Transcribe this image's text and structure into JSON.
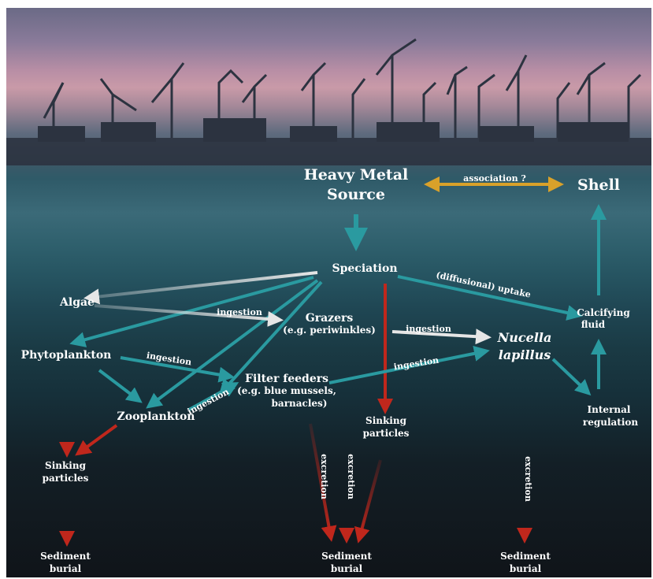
{
  "nodes": {
    "heavy_metal_source": [
      "Heavy Metal",
      "Source"
    ],
    "shell": "Shell",
    "speciation": "Speciation",
    "algae": "Algae",
    "grazers": [
      "Grazers",
      "(e.g. periwinkles)"
    ],
    "nucella": [
      "Nucella",
      "lapillus"
    ],
    "calcifying_fluid": [
      "Calcifying",
      "fluid"
    ],
    "phytoplankton": "Phytoplankton",
    "filter_feeders": [
      "Filter feeders",
      "(e.g. blue mussels,",
      "barnacles)"
    ],
    "zooplankton": "Zooplankton",
    "internal_regulation": [
      "Internal",
      "regulation"
    ],
    "sinking_particles_left": [
      "Sinking",
      "particles"
    ],
    "sinking_particles_mid": [
      "Sinking",
      "particles"
    ],
    "sediment_burial_left": [
      "Sediment",
      "burial"
    ],
    "sediment_burial_mid": [
      "Sediment",
      "burial"
    ],
    "sediment_burial_right": [
      "Sediment",
      "burial"
    ]
  },
  "edge_labels": {
    "association": "association ?",
    "diffusional_uptake": "(diffusional) uptake",
    "ingestion_algae_grazers": "ingestion",
    "ingestion_grazers_nucella": "ingestion",
    "ingestion_filter_nucella": "ingestion",
    "ingestion_phyto_filter": "ingestion",
    "ingestion_zoo_filter": "ingestion",
    "excretion_filter": "excretion",
    "excretion_grazers": "excretion",
    "excretion_nucella": "excretion"
  },
  "colors": {
    "teal_arrow": "#2a9aa0",
    "white_arrow": "#e6e6e6",
    "red_arrow": "#c0271c",
    "gold_arrow": "#d9a12a",
    "label_text": "#ffffff"
  }
}
